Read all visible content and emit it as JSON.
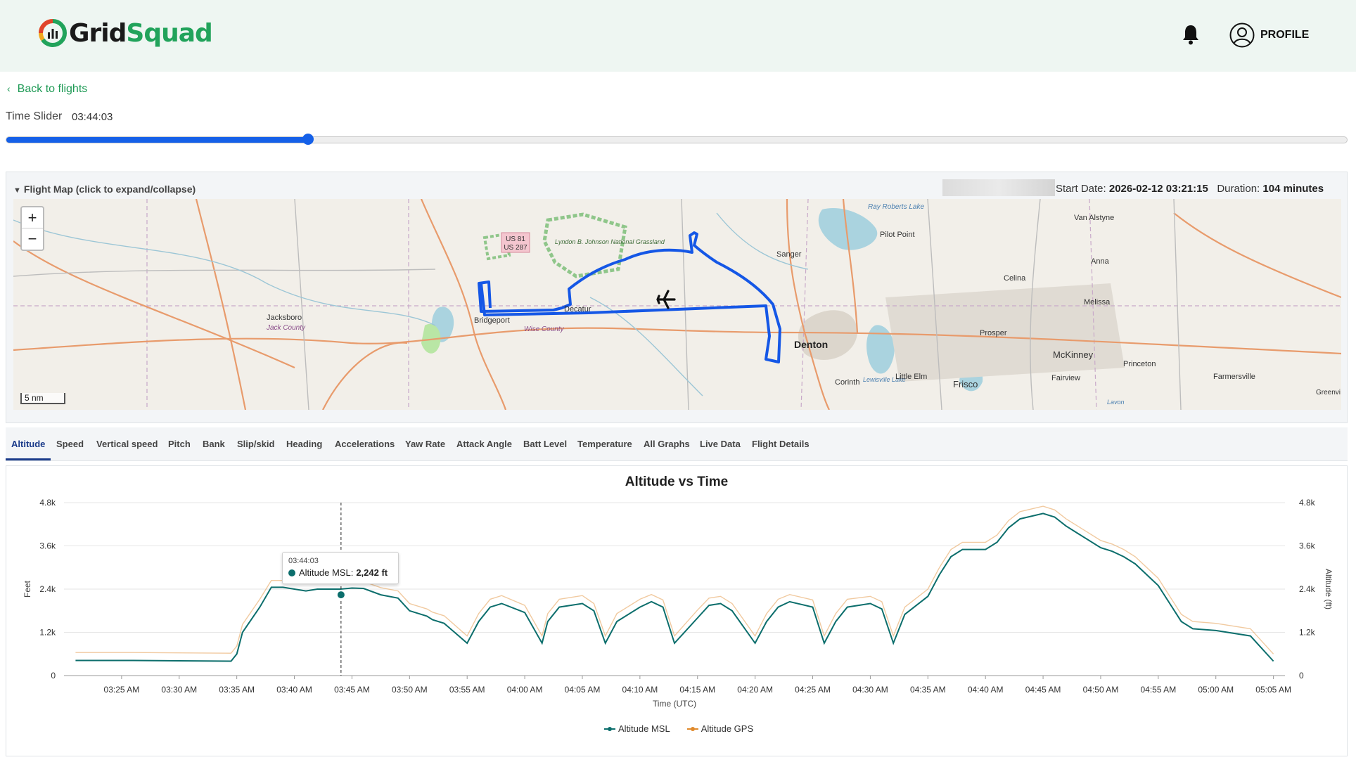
{
  "header": {
    "logo_part1": "Grid",
    "logo_part2": "Squad",
    "profile_label": "PROFILE",
    "icons": [
      "bell-icon",
      "user-circle-icon"
    ]
  },
  "nav": {
    "back_label": "Back to flights"
  },
  "time_slider": {
    "label": "Time Slider",
    "value": "03:44:03",
    "position_fraction": 0.225,
    "accent_color": "#1560e8"
  },
  "flight_map": {
    "toggle_label": "Flight Map (click to expand/collapse)",
    "start_date_label": "Start Date:",
    "start_date_value": "2026-02-12 03:21:15",
    "duration_label": "Duration:",
    "duration_value": "104 minutes",
    "scale_label": "5 nm",
    "route_color": "#1557e6",
    "places": [
      {
        "name": "Jacksboro"
      },
      {
        "name": "Jack County"
      },
      {
        "name": "Bridgeport"
      },
      {
        "name": "Wise County"
      },
      {
        "name": "Decatur"
      },
      {
        "name": "Sanger"
      },
      {
        "name": "Pilot Point"
      },
      {
        "name": "Ray Roberts Lake"
      },
      {
        "name": "Van Alstyne"
      },
      {
        "name": "Anna"
      },
      {
        "name": "Celina"
      },
      {
        "name": "Melissa"
      },
      {
        "name": "Prosper"
      },
      {
        "name": "Denton"
      },
      {
        "name": "Corinth"
      },
      {
        "name": "Lewisville Lake"
      },
      {
        "name": "Little Elm"
      },
      {
        "name": "Frisco"
      },
      {
        "name": "McKinney"
      },
      {
        "name": "Fairview"
      },
      {
        "name": "Princeton"
      },
      {
        "name": "Farmersville"
      },
      {
        "name": "Lyndon B. Johnson National Grassland"
      },
      {
        "name": "US 81 US 287"
      },
      {
        "name": "Greenvi"
      },
      {
        "name": "Lavon"
      }
    ]
  },
  "tabs": [
    {
      "label": "Altitude",
      "active": true
    },
    {
      "label": "Speed"
    },
    {
      "label": "Vertical speed"
    },
    {
      "label": "Pitch"
    },
    {
      "label": "Bank"
    },
    {
      "label": "Slip/skid"
    },
    {
      "label": "Heading"
    },
    {
      "label": "Accelerations"
    },
    {
      "label": "Yaw Rate"
    },
    {
      "label": "Attack Angle"
    },
    {
      "label": "Batt Level"
    },
    {
      "label": "Temperature"
    },
    {
      "label": "All Graphs"
    },
    {
      "label": "Live Data"
    },
    {
      "label": "Flight Details"
    }
  ],
  "tooltip": {
    "time": "03:44:03",
    "series": "Altitude MSL:",
    "value": "2,242 ft"
  },
  "chart_data": {
    "type": "line",
    "title": "Altitude vs Time",
    "xlabel": "Time (UTC)",
    "ylabel": "Feet",
    "ylabel_right": "Altitude (ft)",
    "x_ticks": [
      "03:25 AM",
      "03:30 AM",
      "03:35 AM",
      "03:40 AM",
      "03:45 AM",
      "03:50 AM",
      "03:55 AM",
      "04:00 AM",
      "04:05 AM",
      "04:10 AM",
      "04:15 AM",
      "04:20 AM",
      "04:25 AM",
      "04:30 AM",
      "04:35 AM",
      "04:40 AM",
      "04:45 AM",
      "04:50 AM",
      "04:55 AM",
      "05:00 AM",
      "05:05 AM"
    ],
    "y_ticks": [
      "0",
      "1.2k",
      "2.4k",
      "3.6k",
      "4.8k"
    ],
    "xlim_minutes_after_0320": [
      0,
      106
    ],
    "ylim": [
      0,
      4800
    ],
    "grid": true,
    "legend_position": "bottom-center",
    "cursor_time": "03:44:03",
    "series": [
      {
        "name": "Altitude MSL",
        "color": "#0c6e6c",
        "minutes_after_0320": [
          1,
          6,
          10,
          14.5,
          15,
          15.5,
          17,
          18,
          19,
          21,
          22,
          24,
          25,
          26,
          27.5,
          29,
          30,
          31.5,
          32,
          33,
          35,
          36,
          37,
          38,
          40,
          41.5,
          42,
          43,
          45,
          46,
          47,
          48,
          50,
          51,
          52,
          53,
          55,
          56,
          57,
          58,
          60,
          61,
          62,
          63,
          65,
          66,
          67,
          68,
          70,
          71,
          72,
          73,
          75,
          76,
          77,
          78,
          80,
          81,
          82,
          83,
          85,
          86,
          87,
          88,
          90,
          91,
          92,
          93,
          95,
          96,
          97,
          98,
          100,
          103,
          105
        ],
        "values": [
          420,
          420,
          410,
          400,
          600,
          1200,
          1900,
          2450,
          2450,
          2350,
          2400,
          2400,
          2430,
          2420,
          2242,
          2150,
          1800,
          1650,
          1550,
          1450,
          900,
          1500,
          1900,
          2000,
          1750,
          900,
          1500,
          1900,
          2000,
          1800,
          900,
          1500,
          1900,
          2050,
          1900,
          900,
          1600,
          1950,
          2000,
          1800,
          900,
          1500,
          1900,
          2050,
          1900,
          900,
          1500,
          1900,
          2000,
          1850,
          900,
          1700,
          2200,
          2800,
          3300,
          3500,
          3500,
          3700,
          4100,
          4350,
          4500,
          4400,
          4150,
          3950,
          3550,
          3450,
          3300,
          3100,
          2500,
          2000,
          1500,
          1300,
          1250,
          1100,
          400,
          400,
          420
        ]
      },
      {
        "name": "Altitude GPS",
        "color": "#e08a2c",
        "minutes_after_0320": [
          1,
          6,
          10,
          14.5,
          15,
          15.5,
          17,
          18,
          19,
          21,
          22,
          24,
          25,
          26,
          27.5,
          29,
          30,
          31.5,
          32,
          33,
          35,
          36,
          37,
          38,
          40,
          41.5,
          42,
          43,
          45,
          46,
          47,
          48,
          50,
          51,
          52,
          53,
          55,
          56,
          57,
          58,
          60,
          61,
          62,
          63,
          65,
          66,
          67,
          68,
          70,
          71,
          72,
          73,
          75,
          76,
          77,
          78,
          80,
          81,
          82,
          83,
          85,
          86,
          87,
          88,
          90,
          91,
          92,
          93,
          95,
          96,
          97,
          98,
          100,
          103,
          105
        ],
        "values": [
          640,
          640,
          630,
          620,
          820,
          1420,
          2120,
          2640,
          2640,
          2550,
          2600,
          2600,
          2620,
          2610,
          2440,
          2350,
          2000,
          1850,
          1760,
          1660,
          1100,
          1720,
          2120,
          2220,
          1950,
          1100,
          1720,
          2120,
          2220,
          2000,
          1100,
          1720,
          2120,
          2250,
          2100,
          1100,
          1820,
          2150,
          2200,
          2000,
          1100,
          1720,
          2120,
          2250,
          2100,
          1100,
          1720,
          2120,
          2200,
          2050,
          1100,
          1900,
          2400,
          3000,
          3500,
          3700,
          3700,
          3900,
          4300,
          4550,
          4700,
          4600,
          4350,
          4150,
          3750,
          3650,
          3500,
          3300,
          2700,
          2200,
          1700,
          1500,
          1450,
          1300,
          600,
          600,
          620
        ]
      }
    ]
  }
}
